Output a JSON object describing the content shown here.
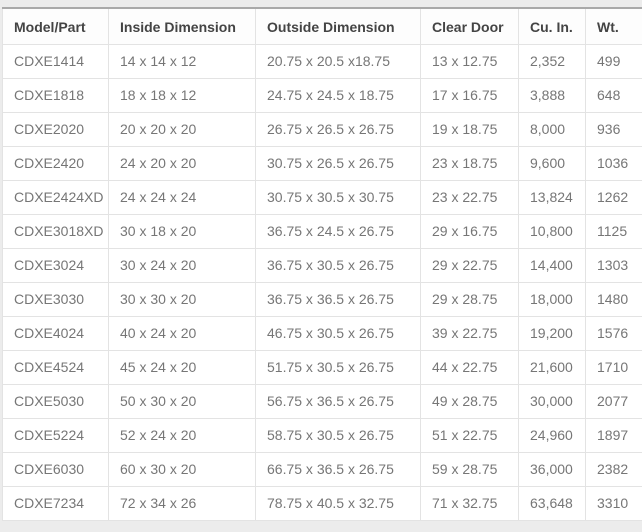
{
  "table": {
    "name": "product-size-specification-table",
    "columns": [
      "Model/Part",
      "Inside Dimension",
      "Outside Dimension",
      "Clear Door",
      "Cu. In.",
      "Wt."
    ],
    "rows": [
      [
        "CDXE1414",
        "14 x 14 x 12",
        "20.75 x 20.5 x18.75",
        "13 x 12.75",
        "2,352",
        "499"
      ],
      [
        "CDXE1818",
        "18 x 18 x 12",
        "24.75 x 24.5 x 18.75",
        "17 x 16.75",
        "3,888",
        "648"
      ],
      [
        "CDXE2020",
        "20 x 20 x 20",
        "26.75 x 26.5 x 26.75",
        "19 x 18.75",
        "8,000",
        "936"
      ],
      [
        "CDXE2420",
        "24 x 20 x 20",
        "30.75 x 26.5 x 26.75",
        "23 x 18.75",
        "9,600",
        "1036"
      ],
      [
        "CDXE2424XD",
        "24 x 24 x 24",
        "30.75 x 30.5 x 30.75",
        "23 x 22.75",
        "13,824",
        "1262"
      ],
      [
        "CDXE3018XD",
        "30 x 18 x 20",
        "36.75 x 24.5 x 26.75",
        "29 x 16.75",
        "10,800",
        "1125"
      ],
      [
        "CDXE3024",
        "30 x 24 x 20",
        "36.75 x 30.5 x 26.75",
        "29 x 22.75",
        "14,400",
        "1303"
      ],
      [
        "CDXE3030",
        "30 x 30 x 20",
        "36.75 x 36.5 x 26.75",
        "29 x 28.75",
        "18,000",
        "1480"
      ],
      [
        "CDXE4024",
        "40 x 24 x 20",
        "46.75 x 30.5 x 26.75",
        "39 x 22.75",
        "19,200",
        "1576"
      ],
      [
        "CDXE4524",
        "45 x 24 x 20",
        "51.75 x 30.5 x 26.75",
        "44 x 22.75",
        "21,600",
        "1710"
      ],
      [
        "CDXE5030",
        "50 x 30 x 20",
        "56.75 x 36.5 x 26.75",
        "49 x 28.75",
        "30,000",
        "2077"
      ],
      [
        "CDXE5224",
        "52 x 24 x 20",
        "58.75 x 30.5 x 26.75",
        "51 x 22.75",
        "24,960",
        "1897"
      ],
      [
        "CDXE6030",
        "60 x 30 x 20",
        "66.75 x 36.5 x 26.75",
        "59 x 28.75",
        "36,000",
        "2382"
      ],
      [
        "CDXE7234",
        "72 x 34 x 26",
        "78.75 x 40.5 x 32.75",
        "71 x 32.75",
        "63,648",
        "3310"
      ]
    ]
  },
  "colors": {
    "page_background": "#ececec",
    "table_background": "#ffffff",
    "cell_border": "#e3e3e3",
    "header_top_border": "#a9a9a9",
    "header_text": "#444444",
    "cell_text": "#767676"
  }
}
